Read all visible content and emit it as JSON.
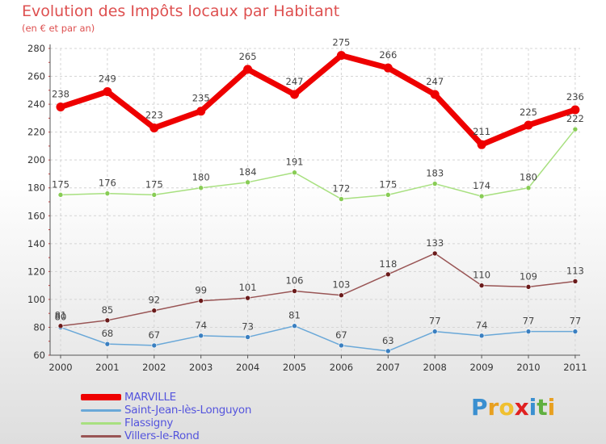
{
  "header": {
    "title": "Evolution des Impôts locaux par Habitant",
    "subtitle": "(en € et par an)"
  },
  "brand": {
    "name": "Proxiti",
    "letters": [
      {
        "char": "P",
        "color": "#3a8fd0"
      },
      {
        "char": "r",
        "color": "#e8a020"
      },
      {
        "char": "o",
        "color": "#f0c030"
      },
      {
        "char": "x",
        "color": "#e02020"
      },
      {
        "char": "i",
        "color": "#3a8fd0"
      },
      {
        "char": "t",
        "color": "#60b040"
      },
      {
        "char": "i",
        "color": "#e8a020"
      }
    ]
  },
  "chart_data": {
    "type": "line",
    "title": "Evolution des Impôts locaux par Habitant",
    "subtitle": "(en € et par an)",
    "x": [
      "2000",
      "2001",
      "2002",
      "2003",
      "2004",
      "2005",
      "2006",
      "2007",
      "2008",
      "2009",
      "2010",
      "2011"
    ],
    "ylim": [
      60,
      280
    ],
    "yticks": [
      "60",
      "80",
      "100",
      "120",
      "140",
      "160",
      "180",
      "200",
      "220",
      "240",
      "260",
      "280"
    ],
    "grid": true,
    "legend_position": "bottom-left",
    "series": [
      {
        "name": "MARVILLE",
        "color": "#ee0000",
        "marker": "#ee0000",
        "width": 7,
        "radius": 5.5,
        "values": [
          238,
          249,
          223,
          235,
          265,
          247,
          275,
          266,
          247,
          211,
          225,
          236
        ],
        "labels": [
          "238",
          "249",
          "223",
          "235",
          "265",
          "247",
          "275",
          "266",
          "247",
          "211",
          "225",
          "236"
        ]
      },
      {
        "name": "Saint-Jean-lès-Longuyon",
        "color": "#6aa8d8",
        "marker": "#3a7fc0",
        "width": 1.5,
        "radius": 3,
        "values": [
          80,
          68,
          67,
          74,
          73,
          81,
          67,
          63,
          77,
          74,
          77,
          77
        ],
        "labels": [
          "80",
          "68",
          "67",
          "74",
          "73",
          "81",
          "67",
          "63",
          "77",
          "74",
          "77",
          "77"
        ]
      },
      {
        "name": "Flassigny",
        "color": "#a8e080",
        "marker": "#88cc55",
        "width": 1.5,
        "radius": 3,
        "values": [
          175,
          176,
          175,
          180,
          184,
          191,
          172,
          175,
          183,
          174,
          180,
          222
        ],
        "labels": [
          "175",
          "176",
          "175",
          "180",
          "184",
          "191",
          "172",
          "175",
          "183",
          "174",
          "180",
          "222"
        ]
      },
      {
        "name": "Villers-le-Rond",
        "color": "#995555",
        "marker": "#6a1a1a",
        "width": 1.5,
        "radius": 3,
        "values": [
          81,
          85,
          92,
          99,
          101,
          106,
          103,
          118,
          133,
          110,
          109,
          113
        ],
        "labels": [
          "81",
          "85",
          "92",
          "99",
          "101",
          "106",
          "103",
          "118",
          "133",
          "110",
          "109",
          "113"
        ]
      }
    ]
  }
}
